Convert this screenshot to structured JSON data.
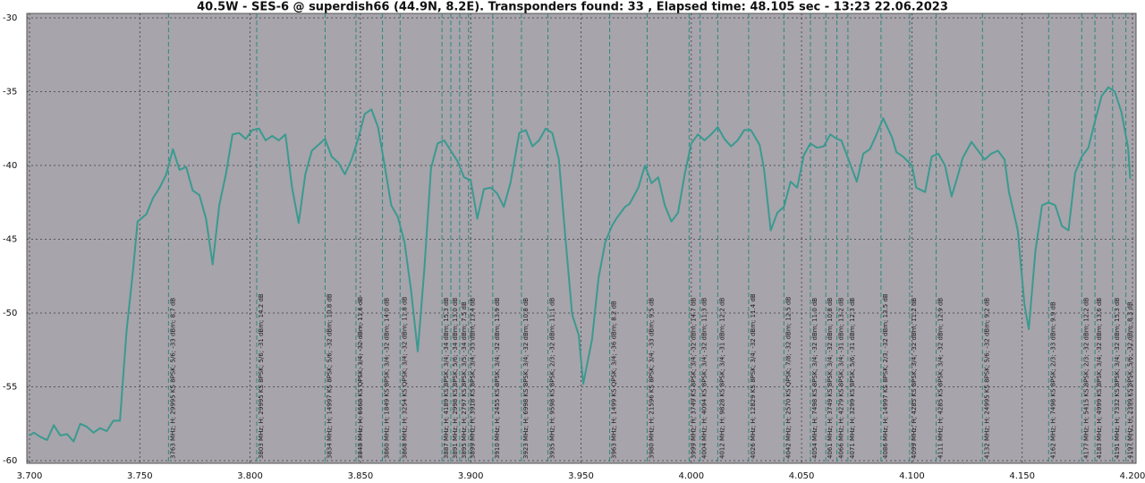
{
  "chart_data": {
    "type": "line",
    "title": "40.5W - SES-6 @ superdish66 (44.9N, 8.2E). Transponders found: 33 , Elapsed time: 48.105 sec - 13:23 22.06.2023",
    "color": "#3a9a90",
    "marker_color": "#2a8a80",
    "grid": true,
    "xlim": [
      3.7,
      4.2
    ],
    "ylim": [
      -60,
      -30
    ],
    "xticks": [
      {
        "value": 3.7,
        "label": "3.700"
      },
      {
        "value": 3.75,
        "label": "3.750"
      },
      {
        "value": 3.8,
        "label": "3.800"
      },
      {
        "value": 3.85,
        "label": "3.850"
      },
      {
        "value": 3.9,
        "label": "3.900"
      },
      {
        "value": 3.95,
        "label": "3.950"
      },
      {
        "value": 4.0,
        "label": "4.000"
      },
      {
        "value": 4.05,
        "label": "4.050"
      },
      {
        "value": 4.1,
        "label": "4.100"
      },
      {
        "value": 4.15,
        "label": "4.150"
      },
      {
        "value": 4.2,
        "label": "4.200"
      }
    ],
    "yticks": [
      -30,
      -35,
      -40,
      -45,
      -50,
      -55,
      -60
    ],
    "x": [
      3.7,
      3.702,
      3.705,
      3.708,
      3.711,
      3.714,
      3.717,
      3.72,
      3.723,
      3.726,
      3.729,
      3.732,
      3.735,
      3.738,
      3.741,
      3.744,
      3.747,
      3.749,
      3.753,
      3.756,
      3.759,
      3.762,
      3.765,
      3.768,
      3.771,
      3.774,
      3.777,
      3.78,
      3.783,
      3.786,
      3.789,
      3.792,
      3.795,
      3.798,
      3.801,
      3.804,
      3.807,
      3.81,
      3.813,
      3.816,
      3.819,
      3.822,
      3.825,
      3.828,
      3.831,
      3.834,
      3.837,
      3.84,
      3.843,
      3.846,
      3.849,
      3.852,
      3.855,
      3.858,
      3.861,
      3.864,
      3.867,
      3.87,
      3.873,
      3.876,
      3.879,
      3.882,
      3.885,
      3.888,
      3.891,
      3.894,
      3.897,
      3.9,
      3.903,
      3.906,
      3.909,
      3.912,
      3.915,
      3.918,
      3.922,
      3.925,
      3.928,
      3.931,
      3.934,
      3.937,
      3.94,
      3.943,
      3.946,
      3.949,
      3.951,
      3.955,
      3.958,
      3.961,
      3.964,
      3.966,
      3.97,
      3.972,
      3.976,
      3.979,
      3.982,
      3.985,
      3.988,
      3.991,
      3.994,
      3.997,
      4.0,
      4.003,
      4.006,
      4.009,
      4.012,
      4.015,
      4.018,
      4.021,
      4.024,
      4.027,
      4.031,
      4.033,
      4.036,
      4.039,
      4.042,
      4.045,
      4.048,
      4.051,
      4.054,
      4.057,
      4.06,
      4.063,
      4.066,
      4.068,
      4.072,
      4.075,
      4.078,
      4.081,
      4.084,
      4.087,
      4.091,
      4.093,
      4.096,
      4.1,
      4.102,
      4.106,
      4.109,
      4.112,
      4.115,
      4.118,
      4.121,
      4.123,
      4.127,
      4.129,
      4.133,
      4.136,
      4.139,
      4.142,
      4.144,
      4.148,
      4.151,
      4.153,
      4.156,
      4.159,
      4.162,
      4.165,
      4.168,
      4.171,
      4.174,
      4.177,
      4.18,
      4.183,
      4.186,
      4.189,
      4.192,
      4.195,
      4.198,
      4.199
    ],
    "values": [
      -58.3,
      -58.1,
      -58.4,
      -58.6,
      -57.6,
      -58.3,
      -58.2,
      -58.7,
      -57.5,
      -57.7,
      -58.1,
      -57.8,
      -58.0,
      -57.3,
      -57.3,
      -51.2,
      -47.0,
      -43.8,
      -43.3,
      -42.2,
      -41.5,
      -40.6,
      -38.9,
      -40.3,
      -40.1,
      -41.7,
      -42.0,
      -43.6,
      -46.7,
      -42.7,
      -40.6,
      -37.9,
      -37.8,
      -38.2,
      -37.6,
      -37.5,
      -38.3,
      -38.0,
      -38.3,
      -37.9,
      -41.5,
      -43.9,
      -40.6,
      -39.0,
      -38.6,
      -38.2,
      -39.4,
      -39.8,
      -40.6,
      -39.6,
      -38.2,
      -36.5,
      -36.2,
      -37.4,
      -40.0,
      -42.7,
      -43.5,
      -45.2,
      -48.5,
      -52.6,
      -47.0,
      -40.2,
      -38.5,
      -38.3,
      -39.0,
      -39.7,
      -40.8,
      -41.0,
      -43.6,
      -41.6,
      -41.5,
      -41.9,
      -42.8,
      -41.2,
      -37.8,
      -37.6,
      -38.7,
      -38.3,
      -37.5,
      -37.8,
      -39.6,
      -45.0,
      -50.1,
      -51.5,
      -54.8,
      -51.8,
      -47.6,
      -45.2,
      -44.1,
      -43.6,
      -42.8,
      -42.6,
      -41.5,
      -40.0,
      -41.2,
      -40.8,
      -42.7,
      -43.8,
      -43.2,
      -40.6,
      -38.5,
      -37.9,
      -38.3,
      -37.9,
      -37.4,
      -38.2,
      -38.7,
      -38.3,
      -37.6,
      -37.6,
      -38.6,
      -40.3,
      -44.4,
      -43.2,
      -42.8,
      -41.1,
      -41.5,
      -39.3,
      -38.5,
      -38.8,
      -38.7,
      -37.9,
      -38.2,
      -38.3,
      -39.9,
      -41.1,
      -39.2,
      -38.9,
      -37.9,
      -36.8,
      -38.1,
      -39.1,
      -39.4,
      -40.0,
      -41.5,
      -41.8,
      -39.4,
      -39.2,
      -40.0,
      -42.1,
      -40.6,
      -39.5,
      -38.4,
      -38.8,
      -39.6,
      -39.2,
      -39.0,
      -39.6,
      -41.8,
      -44.4,
      -49.4,
      -51.1,
      -45.8,
      -42.7,
      -42.5,
      -42.7,
      -44.1,
      -44.4,
      -40.5,
      -39.4,
      -38.8,
      -37.0,
      -35.3,
      -34.7,
      -35.0,
      -36.4,
      -38.8,
      -40.9
    ],
    "markers": [
      {
        "x": 3.763,
        "label": "3763 MHz; H; 29995 KS 8PSK; 5/6; -33 dBm; 8.7 dB"
      },
      {
        "x": 3.803,
        "label": "3803 MHz; H; 29995 KS 8PSK; 5/6; -31 dBm; 14.2 dB"
      },
      {
        "x": 3.834,
        "label": "3834 MHz; H; 14997 KS 8PSK; 5/6; -32 dBm; 10.8 dB"
      },
      {
        "x": 3.848,
        "label": "3848 MHz; H; 6668 KS QPSK; 3/4; -32 dBm; 11.6 dB"
      },
      {
        "x": 3.86,
        "label": "3860 MHz; H; 1849 KS 8PSK; 3/4; -32 dBm; 14.0 dB"
      },
      {
        "x": 3.868,
        "label": "3868 MHz; H; 3254 KS QPSK; 3/4; -32 dBm; 11.8 dB"
      },
      {
        "x": 3.887,
        "label": "3887 MHz; H; 4189 KS 8PSK; 3/4; -34 dBm; 15.3 dB"
      },
      {
        "x": 3.891,
        "label": "3891 MHz; H; 2998 KS 8PSK; 5/6; -34 dBm; 13.0 dB"
      },
      {
        "x": 3.895,
        "label": "3895 MHz; H; 2797 KS 8PSK; 3/5; -34 dBm; 7.5 dB"
      },
      {
        "x": 3.899,
        "label": "3899 MHz; H; 3918 KS 8PSK; 3/4; -33 dBm; 13.4 dB"
      },
      {
        "x": 3.91,
        "label": "3910 MHz; H; 2455 KS 8PSK; 3/4; -32 dBm; 13.9 dB"
      },
      {
        "x": 3.923,
        "label": "3923 MHz; H; 6998 KS 8PSK; 3/4; -32 dBm; 10.8 dB"
      },
      {
        "x": 3.935,
        "label": "3935 MHz; H; 9598 KS 8PSK; 2/3; -32 dBm; 11.1 dB"
      },
      {
        "x": 3.963,
        "label": "3963 MHz; H; 1499 KS QPSK; 3/4; -36 dBm; 8.2 dB"
      },
      {
        "x": 3.98,
        "label": "3980 MHz; H; 21596 KS 8PSK; 3/4; -33 dBm; 9.5 dB"
      },
      {
        "x": 3.999,
        "label": "3999 MHz; H; 3749 KS 8PSK; 3/4; -32 dBm; 14.7 dB"
      },
      {
        "x": 4.004,
        "label": "4004 MHz; H; 4094 KS 8PSK; 3/4; -32 dBm; 11.3 dB"
      },
      {
        "x": 4.012,
        "label": "4012 MHz; H; 9828 KS 8PSK; 3/4; -31 dBm; 12.2 dB"
      },
      {
        "x": 4.026,
        "label": "4026 MHz; H; 12829 KS 8PSK; 3/4; -32 dBm; 11.4 dB"
      },
      {
        "x": 4.042,
        "label": "4042 MHz; H; 2570 KS QPSK; 7/8; -32 dBm; 12.5 dB"
      },
      {
        "x": 4.054,
        "label": "4054 MHz; H; 7498 KS 8PSK; 3/4; -32 dBm; 11.0 dB"
      },
      {
        "x": 4.061,
        "label": "4061 MHz; H; 3749 KS 8PSK; 3/4; -32 dBm; 10.8 dB"
      },
      {
        "x": 4.066,
        "label": "4066 MHz; H; 4279 KS 8PSK; 3/4; -31 dBm; 13.2 dB"
      },
      {
        "x": 4.071,
        "label": "4071 MHz; H; 3299 KS 8PSK; 5/6; -31 dBm; 12.3 dB"
      },
      {
        "x": 4.086,
        "label": "4086 MHz; H; 14997 KS 8PSK; 2/3; -32 dBm; 13.5 dB"
      },
      {
        "x": 4.099,
        "label": "4099 MHz; H; 4285 KS 8PSK; 3/4; -32 dBm; 11.2 dB"
      },
      {
        "x": 4.111,
        "label": "4111 MHz; H; 4285 KS 8PSK; 3/4; -32 dBm; 12.9 dB"
      },
      {
        "x": 4.132,
        "label": "4132 MHz; H; 24995 KS 8PSK; 5/6; -32 dBm; 9.2 dB"
      },
      {
        "x": 4.162,
        "label": "4162 MHz; H; 7498 KS 8PSK; 2/3; -33 dBm; 9.9 dB"
      },
      {
        "x": 4.177,
        "label": "4177 MHz; H; 5415 KS 8PSK; 2/3; -32 dBm; 12.2 dB"
      },
      {
        "x": 4.183,
        "label": "4183 MHz; H; 4999 KS 8PSK; 3/4; -32 dBm; 13.6 dB"
      },
      {
        "x": 4.191,
        "label": "4191 MHz; H; 7332 KS 8PSK; 3/4; -32 dBm; 15.3 dB"
      },
      {
        "x": 4.197,
        "label": "4197 MHz; H; 2399 KS 8PSK; 5/6; -32 dBm; 8.3 dB"
      }
    ]
  }
}
